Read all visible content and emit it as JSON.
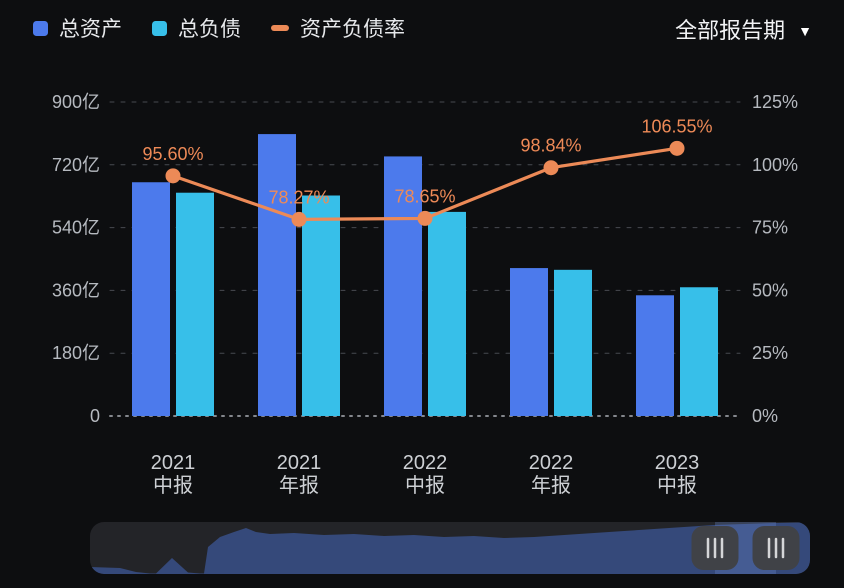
{
  "legend": {
    "items": [
      {
        "label": "总资产",
        "color": "#4c7aec",
        "shape": "square"
      },
      {
        "label": "总负债",
        "color": "#37bfe9",
        "shape": "square"
      },
      {
        "label": "资产负债率",
        "color": "#ec8a57",
        "shape": "dash"
      }
    ]
  },
  "period_selector": {
    "label": "全部报告期",
    "caret": "▼"
  },
  "colors": {
    "background": "#0d0e10",
    "grid": "#474a50",
    "zero_line": "#84878d",
    "axis_text": "#b6bac0",
    "x_label": "#cdd0d4",
    "data_label": "#ee8a57",
    "bar_assets": "#4c7aec",
    "bar_liabilities": "#37bfe9",
    "ratio_line": "#ec8a57"
  },
  "chart_data": {
    "type": "bar+line combo",
    "categories": [
      "2021中报",
      "2021年报",
      "2022中报",
      "2022年报",
      "2023中报"
    ],
    "category_lines": [
      [
        "2021",
        "中报"
      ],
      [
        "2021",
        "年报"
      ],
      [
        "2022",
        "中报"
      ],
      [
        "2022",
        "年报"
      ],
      [
        "2023",
        "中报"
      ]
    ],
    "series": [
      {
        "name": "总资产",
        "type": "bar",
        "axis": "left",
        "unit": "亿",
        "color": "#4c7aec",
        "estimated": true,
        "values": [
          670,
          808,
          744,
          424,
          346
        ]
      },
      {
        "name": "总负债",
        "type": "bar",
        "axis": "left",
        "unit": "亿",
        "color": "#37bfe9",
        "estimated": true,
        "values": [
          640,
          632,
          585,
          419,
          369
        ]
      },
      {
        "name": "资产负债率",
        "type": "line",
        "axis": "right",
        "unit": "%",
        "color": "#ec8a57",
        "values": [
          95.6,
          78.27,
          78.65,
          98.84,
          106.55
        ],
        "labels": [
          "95.60%",
          "78.27%",
          "78.65%",
          "98.84%",
          "106.55%"
        ]
      }
    ],
    "left_axis": {
      "min": 0,
      "max": 900,
      "unit": "亿",
      "ticks": [
        "900亿",
        "720亿",
        "540亿",
        "360亿",
        "180亿",
        "0"
      ]
    },
    "right_axis": {
      "min": 0,
      "max": 125,
      "unit": "%",
      "ticks": [
        "125%",
        "100%",
        "75%",
        "50%",
        "25%",
        "0%"
      ]
    },
    "legend_position": "top-left",
    "grid": "dashed horizontal lines"
  },
  "datazoom": {
    "handle_count": 2,
    "handle_grip": "|||"
  }
}
